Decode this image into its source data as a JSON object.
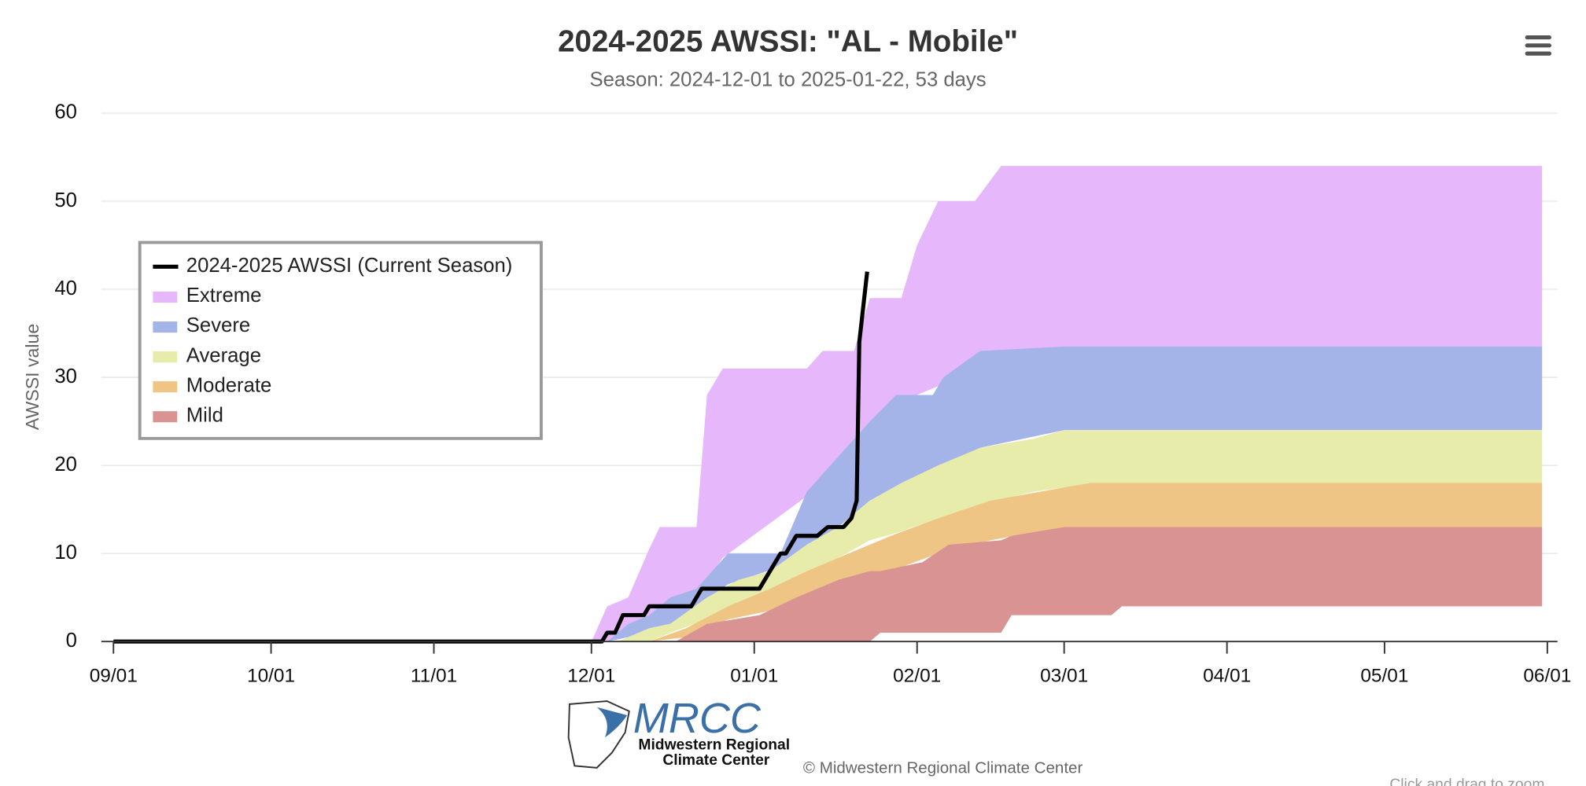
{
  "chart_data": {
    "type": "arearange",
    "title": "2024-2025 AWSSI: \"AL - Mobile\"",
    "subtitle": "Season: 2024-12-01 to 2025-01-22, 53 days",
    "y_label": "AWSSI value",
    "credits": "© Midwestern Regional Climate Center",
    "logo": {
      "name": "MRCC",
      "line1": "Midwestern Regional",
      "line2": "Climate Center"
    },
    "zoom_hint": "Click and drag to zoom",
    "legend": "middle-left",
    "grid": true,
    "xlim": [
      0,
      273
    ],
    "xticks": [
      {
        "value": 0,
        "label": "09/01"
      },
      {
        "value": 30,
        "label": "10/01"
      },
      {
        "value": 61,
        "label": "11/01"
      },
      {
        "value": 91,
        "label": "12/01"
      },
      {
        "value": 122,
        "label": "01/01"
      },
      {
        "value": 153,
        "label": "02/01"
      },
      {
        "value": 181,
        "label": "03/01"
      },
      {
        "value": 212,
        "label": "04/01"
      },
      {
        "value": 242,
        "label": "05/01"
      },
      {
        "value": 273,
        "label": "06/01"
      }
    ],
    "ylim": [
      0,
      60
    ],
    "yticks": [
      0,
      10,
      20,
      30,
      40,
      50,
      60
    ],
    "series": [
      {
        "name": "2024-2025 AWSSI (Current Season)",
        "type": "line",
        "color": "#000000",
        "x": [
          0,
          93,
          94,
          95.5,
          97,
          101,
          102,
          110,
          112,
          123,
          127,
          128,
          130,
          134,
          136,
          139,
          140.5,
          141.5,
          142,
          143.5
        ],
        "values": [
          0,
          0,
          1,
          1,
          3,
          3,
          4,
          4,
          6,
          6,
          10,
          10,
          12,
          12,
          13,
          13,
          14,
          16,
          34,
          42
        ]
      },
      {
        "name": "Extreme",
        "color": "#e6b8fb",
        "x": [
          91,
          94,
          98,
          102,
          104,
          111,
          113,
          116,
          132,
          135,
          141,
          144,
          150,
          153,
          157,
          164,
          169,
          272
        ],
        "low": [
          0,
          0,
          2,
          3,
          4,
          6,
          7,
          9.5,
          16.5,
          18,
          23,
          25,
          28,
          28,
          29,
          32.5,
          33,
          33.5
        ],
        "high": [
          0,
          4,
          5,
          10.5,
          13,
          13,
          28,
          31,
          31,
          33,
          33,
          39,
          39,
          45,
          50,
          50,
          54,
          54
        ]
      },
      {
        "name": "Severe",
        "color": "#a4b4e8",
        "x": [
          94,
          98,
          102,
          106,
          111,
          117,
          127,
          132,
          138,
          144,
          149,
          156,
          158,
          165,
          181,
          272
        ],
        "low": [
          0,
          0.5,
          1.5,
          2,
          4,
          6.5,
          8.5,
          11,
          13,
          16,
          17.5,
          19.5,
          20,
          22,
          24,
          24
        ],
        "high": [
          0,
          2,
          3,
          5,
          6,
          10,
          10,
          17,
          21,
          25,
          28,
          28,
          30,
          33,
          33.5,
          33.5
        ]
      },
      {
        "name": "Average",
        "color": "#e8ecaa",
        "x": [
          96,
          102,
          106,
          113,
          119,
          125,
          132,
          138,
          144,
          150,
          157,
          165,
          175,
          181,
          272
        ],
        "low": [
          0,
          0,
          1,
          2.5,
          4.5,
          6,
          8,
          9.5,
          11.5,
          12.5,
          14,
          15.5,
          17,
          17.5,
          18
        ],
        "high": [
          0,
          1.5,
          2,
          5,
          7,
          8,
          11,
          13,
          16,
          18,
          20,
          22,
          23,
          24,
          24
        ]
      },
      {
        "name": "Moderate",
        "color": "#eec584",
        "x": [
          102,
          109,
          117,
          125,
          132,
          140,
          148,
          157,
          167,
          181,
          186,
          272
        ],
        "low": [
          0,
          0.5,
          2.5,
          3.5,
          5,
          7,
          8,
          10,
          11.5,
          13,
          13,
          13
        ],
        "high": [
          0,
          1.5,
          4,
          6,
          8,
          10,
          12,
          14,
          16,
          17.5,
          18,
          18
        ]
      },
      {
        "name": "Mild",
        "color": "#d99393",
        "x": [
          107,
          113,
          123,
          130,
          138,
          144,
          146,
          154,
          159,
          169,
          171,
          181,
          190,
          192,
          272
        ],
        "low": [
          0,
          0,
          0,
          0,
          0,
          0,
          1,
          1,
          1,
          1,
          3,
          3,
          3,
          4,
          4
        ],
        "high": [
          0,
          2,
          3,
          5,
          7,
          8,
          8,
          9,
          11,
          11.5,
          12,
          13,
          13,
          13,
          13
        ]
      }
    ]
  }
}
